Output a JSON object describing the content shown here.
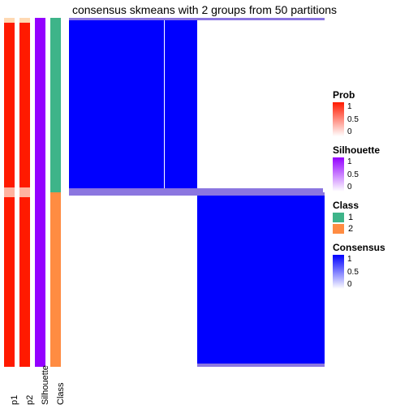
{
  "title": "consensus skmeans with 2 groups from 50 partitions",
  "layout": {
    "split_ratio": 0.5,
    "vline_pos": 0.37
  },
  "colors": {
    "prob": "#ff1a00",
    "prob_fade_top": "#ffd9b3",
    "prob_fade_mid": "#ffb3a0",
    "silhouette": "#9400ff",
    "class1": "#3eb489",
    "class2": "#ff8c42",
    "consensus": "#0000ff",
    "edge": "#8b76e0",
    "bg": "#ffffff"
  },
  "annot_labels": {
    "p1": "p1",
    "p2": "p2",
    "silhouette": "Silhouette",
    "class": "Class"
  },
  "legends": {
    "prob": {
      "title": "Prob",
      "ticks": [
        "1",
        "0.5",
        "0"
      ]
    },
    "silhouette": {
      "title": "Silhouette",
      "ticks": [
        "1",
        "0.5",
        "0"
      ]
    },
    "class": {
      "title": "Class",
      "items": [
        {
          "label": "1",
          "color_key": "class1"
        },
        {
          "label": "2",
          "color_key": "class2"
        }
      ]
    },
    "consensus": {
      "title": "Consensus",
      "ticks": [
        "1",
        "0.5",
        "0"
      ]
    }
  }
}
